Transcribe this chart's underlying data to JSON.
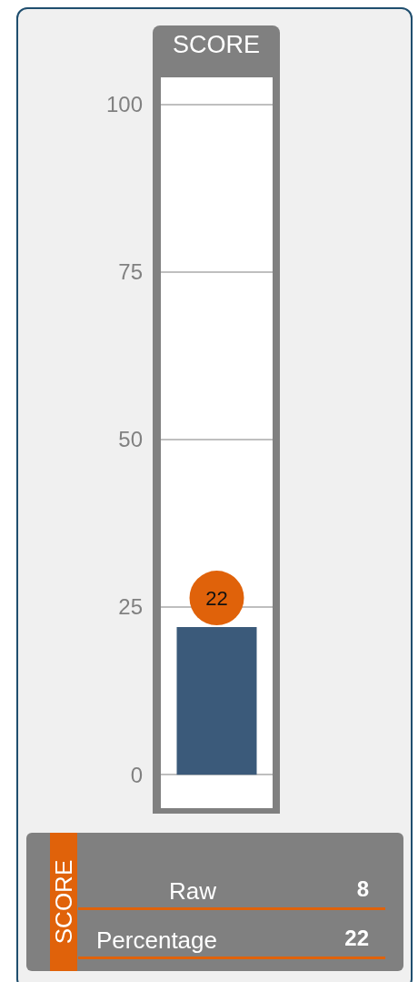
{
  "chart_data": {
    "type": "bar",
    "title": "SCORE",
    "categories": [
      null
    ],
    "values": [
      22
    ],
    "color": "#3b5a7a",
    "ylim": [
      -5,
      104
    ],
    "yticks": [
      0,
      25,
      50,
      75,
      100
    ],
    "grid": "y",
    "data_labels": true,
    "annotations": [
      "SCORE",
      "Raw",
      "8",
      "Percentage",
      "22"
    ]
  }
}
